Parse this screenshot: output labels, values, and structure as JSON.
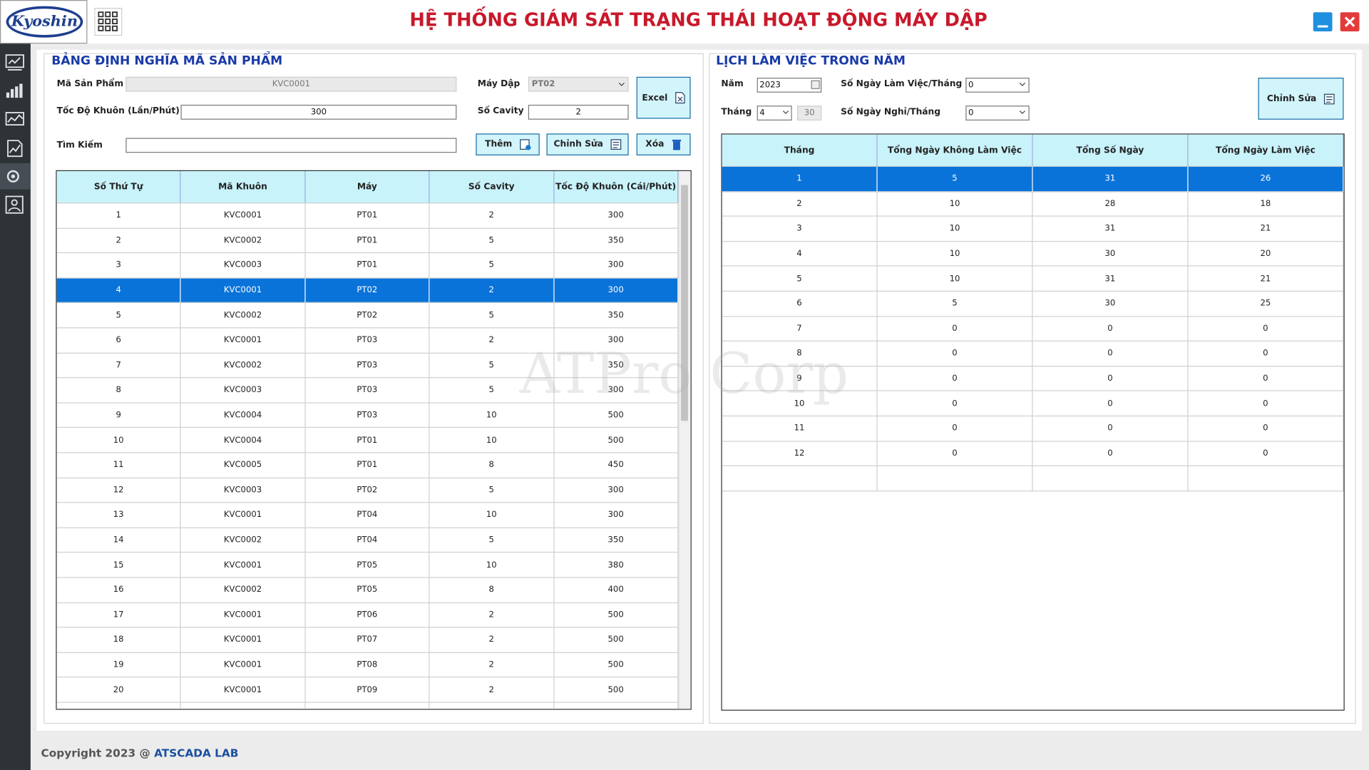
{
  "header": {
    "logo": "Kyoshin",
    "title": "HỆ THỐNG GIÁM SÁT TRẠNG THÁI HOẠT ĐỘNG MÁY DẬP"
  },
  "product_panel": {
    "title": "BẢNG ĐỊNH NGHĨA MÃ SẢN PHẨM",
    "fields": {
      "product_code": {
        "label": "Mã Sản Phẩm",
        "value": "KVC0001"
      },
      "press": {
        "label": "Máy Dập",
        "value": "PT02"
      },
      "speed": {
        "label": "Tốc Độ Khuôn (Lần/Phút)",
        "value": 300
      },
      "cavity": {
        "label": "Số Cavity",
        "value": 2
      },
      "search": {
        "label": "Tìm Kiếm"
      }
    },
    "buttons": {
      "excel": "Excel",
      "add": "Thêm",
      "edit": "Chỉnh Sửa",
      "delete": "Xóa"
    },
    "table": {
      "columns": [
        "Số Thứ Tự",
        "Mã Khuôn",
        "Máy",
        "Số Cavity",
        "Tốc Độ Khuôn (Cái/Phút)"
      ],
      "selected_row": 3,
      "rows": [
        [
          1,
          "KVC0001",
          "PT01",
          2,
          300
        ],
        [
          2,
          "KVC0002",
          "PT01",
          5,
          350
        ],
        [
          3,
          "KVC0003",
          "PT01",
          5,
          300
        ],
        [
          4,
          "KVC0001",
          "PT02",
          2,
          300
        ],
        [
          5,
          "KVC0002",
          "PT02",
          5,
          350
        ],
        [
          6,
          "KVC0001",
          "PT03",
          2,
          300
        ],
        [
          7,
          "KVC0002",
          "PT03",
          5,
          350
        ],
        [
          8,
          "KVC0003",
          "PT03",
          5,
          300
        ],
        [
          9,
          "KVC0004",
          "PT03",
          10,
          500
        ],
        [
          10,
          "KVC0004",
          "PT01",
          10,
          500
        ],
        [
          11,
          "KVC0005",
          "PT01",
          8,
          450
        ],
        [
          12,
          "KVC0003",
          "PT02",
          5,
          300
        ],
        [
          13,
          "KVC0001",
          "PT04",
          10,
          300
        ],
        [
          14,
          "KVC0002",
          "PT04",
          5,
          350
        ],
        [
          15,
          "KVC0001",
          "PT05",
          10,
          380
        ],
        [
          16,
          "KVC0002",
          "PT05",
          8,
          400
        ],
        [
          17,
          "KVC0001",
          "PT06",
          2,
          500
        ],
        [
          18,
          "KVC0001",
          "PT07",
          2,
          500
        ],
        [
          19,
          "KVC0001",
          "PT08",
          2,
          500
        ],
        [
          20,
          "KVC0001",
          "PT09",
          2,
          500
        ]
      ]
    }
  },
  "calendar_panel": {
    "title": "LỊCH LÀM VIỆC TRONG NĂM",
    "fields": {
      "year": {
        "label": "Năm",
        "value": 2023
      },
      "working_days": {
        "label": "Số Ngày Làm Việc/Tháng",
        "value": 0
      },
      "month": {
        "label": "Tháng",
        "value": 4,
        "days": 30
      },
      "days_off": {
        "label": "Số Ngày Nghỉ/Tháng",
        "value": 0
      }
    },
    "buttons": {
      "edit": "Chỉnh Sửa"
    },
    "table": {
      "columns": [
        "Tháng",
        "Tổng Ngày Không Làm Việc",
        "Tổng Số Ngày",
        "Tổng Ngày Làm Việc"
      ],
      "selected_row": 0,
      "rows": [
        [
          1,
          5,
          31,
          26
        ],
        [
          2,
          10,
          28,
          18
        ],
        [
          3,
          10,
          31,
          21
        ],
        [
          4,
          10,
          30,
          20
        ],
        [
          5,
          10,
          31,
          21
        ],
        [
          6,
          5,
          30,
          25
        ],
        [
          7,
          0,
          0,
          0
        ],
        [
          8,
          0,
          0,
          0
        ],
        [
          9,
          0,
          0,
          0
        ],
        [
          10,
          0,
          0,
          0
        ],
        [
          11,
          0,
          0,
          0
        ],
        [
          12,
          0,
          0,
          0
        ]
      ]
    }
  },
  "watermark": "ATPro Corp",
  "footer": {
    "copyright": "Copyright 2023 @",
    "brand": "ATSCADA LAB"
  }
}
